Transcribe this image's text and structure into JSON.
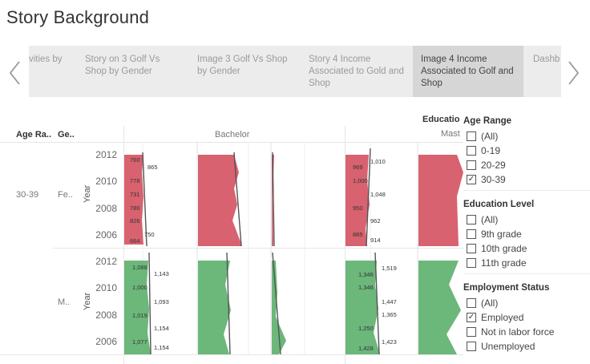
{
  "story": {
    "title": "Story Background",
    "points": [
      {
        "label": "vities by",
        "active": false
      },
      {
        "label": "Story on 3 Golf Vs Shop by Gender",
        "active": false
      },
      {
        "label": "Image 3 Golf Vs Shop by Gender",
        "active": false
      },
      {
        "label": "Story 4 Income Associated to Gold and Shop",
        "active": false
      },
      {
        "label": "Image 4 Income Associated to Golf and Shop",
        "active": true
      },
      {
        "label": "Dashb",
        "active": false
      }
    ]
  },
  "viz": {
    "row_header_age": "Age Ra..",
    "row_header_gender": "Ge..",
    "column_bachelor": "Bachelor",
    "column_master": "Mast",
    "education_header": "Educatio",
    "age_value": "30-39",
    "gender_female": "Fe..",
    "gender_male": "M..",
    "year_axis_title": "Year",
    "years": [
      "2012",
      "2010",
      "2008",
      "2006"
    ],
    "colors": {
      "female": "#d8626f",
      "male": "#6cb77a",
      "line": "#555555"
    }
  },
  "chart_data": {
    "type": "area",
    "ylabel": "Year",
    "rows": [
      "Female 30-39",
      "Male 30-39"
    ],
    "columns": [
      "Bachelor",
      "Master"
    ],
    "series": [
      {
        "name": "Female Bachelor",
        "labels_a": [
          "760",
          "778",
          "731",
          "780",
          "826",
          "664"
        ],
        "labels_b": [
          "865",
          "750"
        ]
      },
      {
        "name": "Female Master",
        "labels_a": [
          "969",
          "1,000",
          "950",
          "885"
        ],
        "labels_b": [
          "1,010",
          "1,048",
          "962",
          "914"
        ]
      },
      {
        "name": "Male Bachelor",
        "labels_a": [
          "1,088",
          "1,000",
          "1,019",
          "1,077"
        ],
        "labels_b": [
          "1,143",
          "1,093",
          "1,154",
          "1,154"
        ]
      },
      {
        "name": "Male Master",
        "labels_a": [
          "1,346",
          "1,346",
          "1,250",
          "1,428"
        ],
        "labels_b": [
          "1,519",
          "1,447",
          "1,365",
          "1,423"
        ]
      }
    ]
  },
  "filters": {
    "age_range": {
      "title": "Age Range",
      "items": [
        {
          "label": "(All)",
          "checked": false
        },
        {
          "label": "0-19",
          "checked": false
        },
        {
          "label": "20-29",
          "checked": false
        },
        {
          "label": "30-39",
          "checked": true
        }
      ]
    },
    "education_level": {
      "title": "Education Level",
      "items": [
        {
          "label": "(All)",
          "checked": false
        },
        {
          "label": "9th grade",
          "checked": false
        },
        {
          "label": "10th grade",
          "checked": false
        },
        {
          "label": "11th grade",
          "checked": false
        }
      ]
    },
    "employment_status": {
      "title": "Employment Status",
      "items": [
        {
          "label": "(All)",
          "checked": false
        },
        {
          "label": "Employed",
          "checked": true
        },
        {
          "label": "Not in labor force",
          "checked": false
        },
        {
          "label": "Unemployed",
          "checked": false
        }
      ]
    },
    "check_glyph": "✓"
  }
}
